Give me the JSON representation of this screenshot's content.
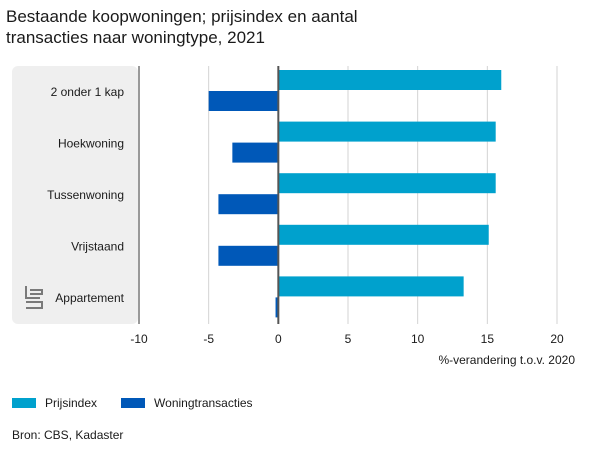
{
  "title_lines": [
    "Bestaande koopwoningen; prijsindex en aantal",
    "transacties naar woningtype, 2021"
  ],
  "source": "Bron: CBS, Kadaster",
  "colors": {
    "prijsindex": "#00a1cd",
    "woningtransacties": "#0058b8",
    "panel": "#efefef",
    "grid": "#d3d3d3",
    "zero": "#555555"
  },
  "chart_data": {
    "type": "bar",
    "orientation": "horizontal",
    "categories": [
      "2 onder 1 kap",
      "Hoekwoning",
      "Tussenwoning",
      "Vrijstaand",
      "Appartement"
    ],
    "series": [
      {
        "name": "Prijsindex",
        "values": [
          16.0,
          15.6,
          15.6,
          15.1,
          13.3
        ]
      },
      {
        "name": "Woningtransacties",
        "values": [
          -5.0,
          -3.3,
          -4.3,
          -4.3,
          -0.2
        ]
      }
    ],
    "xticks": [
      -10,
      -5,
      0,
      5,
      10,
      15,
      20
    ],
    "xlim": [
      -10,
      20
    ],
    "xlabel": "%-verandering t.o.v. 2020",
    "legend_position": "bottom-left",
    "grid": "vertical"
  }
}
